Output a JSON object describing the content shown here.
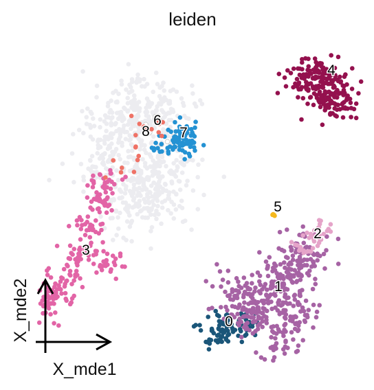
{
  "chart_data": {
    "type": "scatter",
    "title": "leiden",
    "xlabel": "X_mde1",
    "ylabel": "X_mde2",
    "legend": "on data",
    "grid": false,
    "series": [
      {
        "name": "0",
        "color": "#1b5679",
        "centers": [
          [
            331,
            472
          ],
          [
            318,
            488
          ],
          [
            345,
            480
          ],
          [
            360,
            470
          ],
          [
            305,
            490
          ]
        ],
        "spread": [
          12,
          10
        ],
        "n": 90
      },
      {
        "name": "1",
        "color": "#a663a4",
        "centers": [
          [
            380,
            455
          ],
          [
            400,
            425
          ],
          [
            415,
            405
          ],
          [
            430,
            385
          ],
          [
            445,
            365
          ],
          [
            360,
            445
          ],
          [
            410,
            490
          ],
          [
            430,
            455
          ],
          [
            340,
            430
          ]
        ],
        "spread": [
          18,
          16
        ],
        "n": 420
      },
      {
        "name": "2",
        "color": "#e5a4c9",
        "centers": [
          [
            440,
            360
          ],
          [
            455,
            345
          ],
          [
            465,
            335
          ]
        ],
        "spread": [
          8,
          6
        ],
        "n": 40
      },
      {
        "name": "3",
        "color": "#e264a6",
        "centers": [
          [
            145,
            295
          ],
          [
            130,
            330
          ],
          [
            115,
            370
          ],
          [
            100,
            400
          ],
          [
            85,
            425
          ],
          [
            75,
            445
          ],
          [
            150,
            265
          ],
          [
            155,
            380
          ]
        ],
        "spread": [
          12,
          10
        ],
        "n": 220
      },
      {
        "name": "4",
        "color": "#94114e",
        "centers": [
          [
            462,
            115
          ],
          [
            478,
            125
          ],
          [
            448,
            108
          ],
          [
            470,
            140
          ],
          [
            485,
            150
          ]
        ],
        "spread": [
          18,
          15
        ],
        "n": 240
      },
      {
        "name": "5",
        "color": "#f5b81d",
        "centers": [
          [
            398,
            312
          ]
        ],
        "spread": [
          2,
          2
        ],
        "n": 5
      },
      {
        "name": "6",
        "color": "#ffffff",
        "stroke": "#cfcfcf",
        "centers": [
          [
            230,
            185
          ],
          [
            240,
            200
          ]
        ],
        "spread": [
          12,
          12
        ],
        "n": 10
      },
      {
        "name": "7",
        "color": "#2492d3",
        "centers": [
          [
            258,
            203
          ],
          [
            268,
            195
          ],
          [
            245,
            210
          ],
          [
            275,
            215
          ]
        ],
        "spread": [
          12,
          10
        ],
        "n": 80
      },
      {
        "name": "8",
        "color": "#ef7266",
        "centers": [
          [
            215,
            195
          ],
          [
            205,
            215
          ],
          [
            180,
            235
          ],
          [
            228,
            185
          ]
        ],
        "spread": [
          14,
          12
        ],
        "n": 20
      },
      {
        "name": "",
        "color": "#ececf0",
        "centers": [
          [
            175,
            160
          ],
          [
            210,
            140
          ],
          [
            160,
            200
          ],
          [
            195,
            230
          ],
          [
            215,
            180
          ],
          [
            240,
            160
          ],
          [
            200,
            270
          ],
          [
            230,
            290
          ],
          [
            185,
            300
          ],
          [
            140,
            240
          ],
          [
            250,
            240
          ],
          [
            230,
            270
          ]
        ],
        "spread": [
          24,
          22
        ],
        "n": 650
      }
    ],
    "labels": [
      {
        "text": "4",
        "x": 482,
        "y": 102
      },
      {
        "text": "6",
        "x": 229,
        "y": 175
      },
      {
        "text": "8",
        "x": 212,
        "y": 191
      },
      {
        "text": "7",
        "x": 267,
        "y": 193
      },
      {
        "text": "5",
        "x": 404,
        "y": 301
      },
      {
        "text": "2",
        "x": 462,
        "y": 340
      },
      {
        "text": "3",
        "x": 125,
        "y": 364
      },
      {
        "text": "1",
        "x": 405,
        "y": 417
      },
      {
        "text": "0",
        "x": 333,
        "y": 468
      }
    ]
  }
}
